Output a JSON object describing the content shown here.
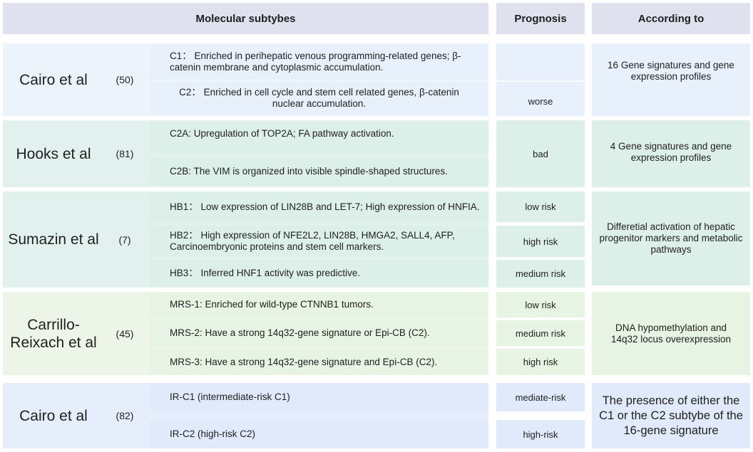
{
  "headers": {
    "subtypes": "Molecular subtybes",
    "prognosis": "Prognosis",
    "according": "According to"
  },
  "groups": [
    {
      "author": "Cairo et al",
      "ref": "(50)",
      "subtypes": [
        "C1： Enriched in perihepatic venous programming-related genes; β-catenin membrane and cytoplasmic accumulation.",
        "C2： Enriched in cell cycle and stem cell related genes, β-catenin nuclear accumulation."
      ],
      "prognosis": [
        "",
        "worse"
      ],
      "according": "16 Gene signatures and gene expression profiles"
    },
    {
      "author": "Hooks et al",
      "ref": "(81)",
      "subtypes": [
        "C2A: Upregulation of TOP2A; FA pathway activation.",
        "C2B: The VIM is organized into visible spindle-shaped structures."
      ],
      "prognosis": [
        "bad"
      ],
      "according": "4 Gene signatures and gene expression profiles"
    },
    {
      "author": "Sumazin et al",
      "ref": "(7)",
      "subtypes": [
        "HB1： Low expression of LIN28B and LET-7; High expression of HNFIA.",
        "HB2： High expression of NFE2L2, LIN28B, HMGA2, SALL4, AFP, Carcinoembryonic proteins and stem cell markers.",
        "HB3： Inferred HNF1 activity was predictive."
      ],
      "prognosis": [
        "low risk",
        "high risk",
        "medium risk"
      ],
      "according": "Differetial activation of hepatic progenitor markers and metabolic pathways"
    },
    {
      "author": "Carrillo-Reixach et al",
      "ref": "(45)",
      "subtypes": [
        "MRS-1: Enriched for wild-type CTNNB1 tumors.",
        "MRS-2: Have a strong 14q32-gene signature or Epi-CB (C2).",
        "MRS-3: Have a strong 14q32-gene signature and Epi-CB (C2)."
      ],
      "prognosis": [
        "low risk",
        "medium risk",
        "high risk"
      ],
      "according": "DNA hypomethylation and 14q32 locus overexpression"
    },
    {
      "author": "Cairo et al",
      "ref": "(82)",
      "subtypes": [
        "IR-C1 (intermediate-risk C1)",
        "IR-C2 (high-risk C2)"
      ],
      "prognosis": [
        "mediate-risk",
        "high-risk"
      ],
      "according": "The presence of either the C1 or the C2 subtybe of the 16-gene signature"
    }
  ]
}
